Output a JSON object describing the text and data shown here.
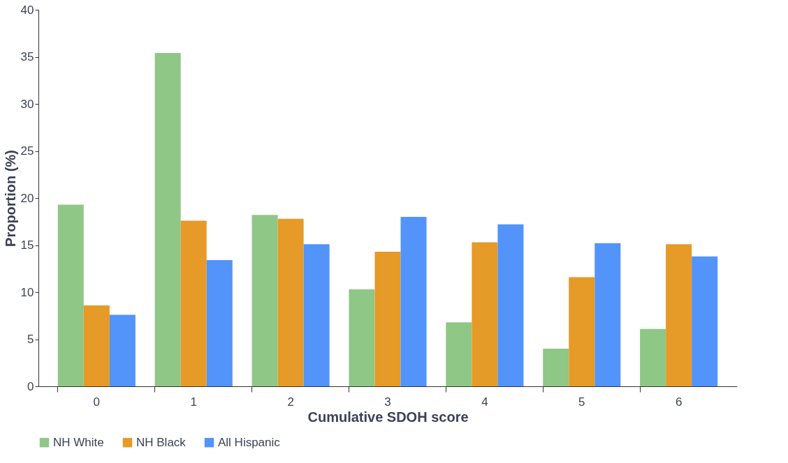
{
  "chart_data": {
    "type": "bar",
    "xlabel": "Cumulative SDOH score",
    "ylabel": "Proportion (%)",
    "categories": [
      "0",
      "1",
      "2",
      "3",
      "4",
      "5",
      "6"
    ],
    "series": [
      {
        "name": "NH White",
        "color": "#8fc786",
        "values": [
          19.3,
          35.4,
          18.2,
          10.3,
          6.8,
          4.0,
          6.1
        ]
      },
      {
        "name": "NH Black",
        "color": "#e69a27",
        "values": [
          8.6,
          17.6,
          17.8,
          14.3,
          15.3,
          11.6,
          15.1
        ]
      },
      {
        "name": "All Hispanic",
        "color": "#5294fa",
        "values": [
          7.6,
          13.4,
          15.1,
          18.0,
          17.2,
          15.2,
          13.8
        ]
      }
    ],
    "ylim": [
      0,
      40
    ],
    "yticks": [
      0,
      5,
      10,
      15,
      20,
      25,
      30,
      35,
      40
    ],
    "grid": false,
    "legend": "bottom"
  }
}
